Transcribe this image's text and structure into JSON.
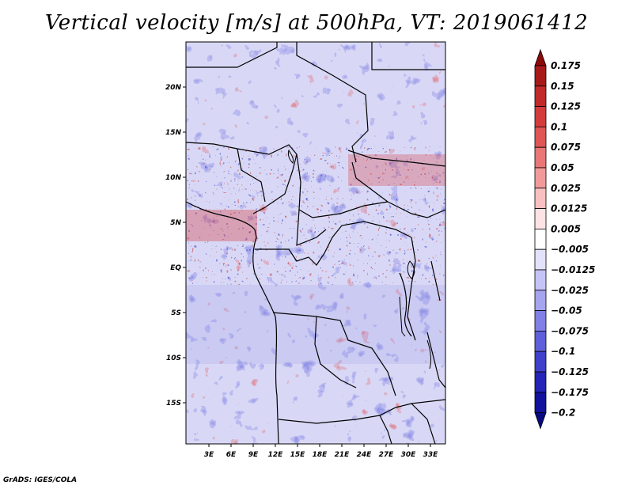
{
  "title": "Vertical velocity [m/s] at 500hPa, VT: 2019061412",
  "credit": "GrADS: IGES/COLA",
  "map": {
    "lon_range": [
      0,
      36
    ],
    "lat_range": [
      -20,
      25
    ],
    "lat_labels": [
      "20N",
      "15N",
      "10N",
      "5N",
      "EQ",
      "5S",
      "10S",
      "15S"
    ],
    "lat_values": [
      20,
      15,
      10,
      5,
      0,
      -5,
      -10,
      -15
    ],
    "lon_labels": [
      "3E",
      "6E",
      "9E",
      "12E",
      "15E",
      "18E",
      "21E",
      "24E",
      "27E",
      "30E",
      "33E"
    ],
    "lon_values": [
      3,
      6,
      9,
      12,
      15,
      18,
      21,
      24,
      27,
      30,
      33
    ]
  },
  "colorbar": {
    "labels": [
      "0.175",
      "0.15",
      "0.125",
      "0.1",
      "0.075",
      "0.05",
      "0.025",
      "0.0125",
      "0.005",
      "−0.005",
      "−0.0125",
      "−0.025",
      "−0.05",
      "−0.075",
      "−0.1",
      "−0.125",
      "−0.175",
      "−0.2"
    ],
    "colors": [
      "#8b0a0a",
      "#a81a1a",
      "#c22a2a",
      "#d43c3c",
      "#e05656",
      "#ea7676",
      "#f29a9a",
      "#f8c0c0",
      "#fde3e3",
      "#ffffff",
      "#e2e2fb",
      "#c4c4f6",
      "#a4a4ef",
      "#8080e6",
      "#5f5fdb",
      "#4040cc",
      "#2424b8",
      "#12129c",
      "#090980"
    ]
  }
}
